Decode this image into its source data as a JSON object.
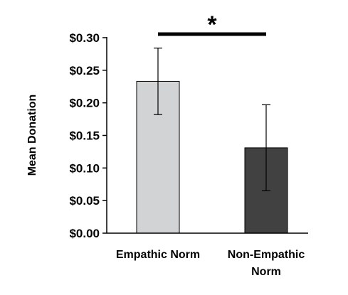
{
  "chart_data": {
    "type": "bar",
    "categories": [
      "Empathic Norm",
      "Non-Empathic Norm"
    ],
    "category_lines": [
      [
        "Empathic Norm"
      ],
      [
        "Non-Empathic",
        "Norm"
      ]
    ],
    "values": [
      0.233,
      0.131
    ],
    "error_low": [
      0.182,
      0.065
    ],
    "error_high": [
      0.284,
      0.197
    ],
    "bar_colors": [
      "#d1d3d4",
      "#414141"
    ],
    "ylabel": "Mean Donation",
    "ylim": [
      0,
      0.3
    ],
    "yticks": [
      0.0,
      0.05,
      0.1,
      0.15,
      0.2,
      0.25,
      0.3
    ],
    "ytick_labels": [
      "$0.00",
      "$0.05",
      "$0.10",
      "$0.15",
      "$0.20",
      "$0.25",
      "$0.30"
    ],
    "significance": {
      "label": "*",
      "between": [
        0,
        1
      ]
    },
    "grid": false,
    "legend": "none"
  }
}
